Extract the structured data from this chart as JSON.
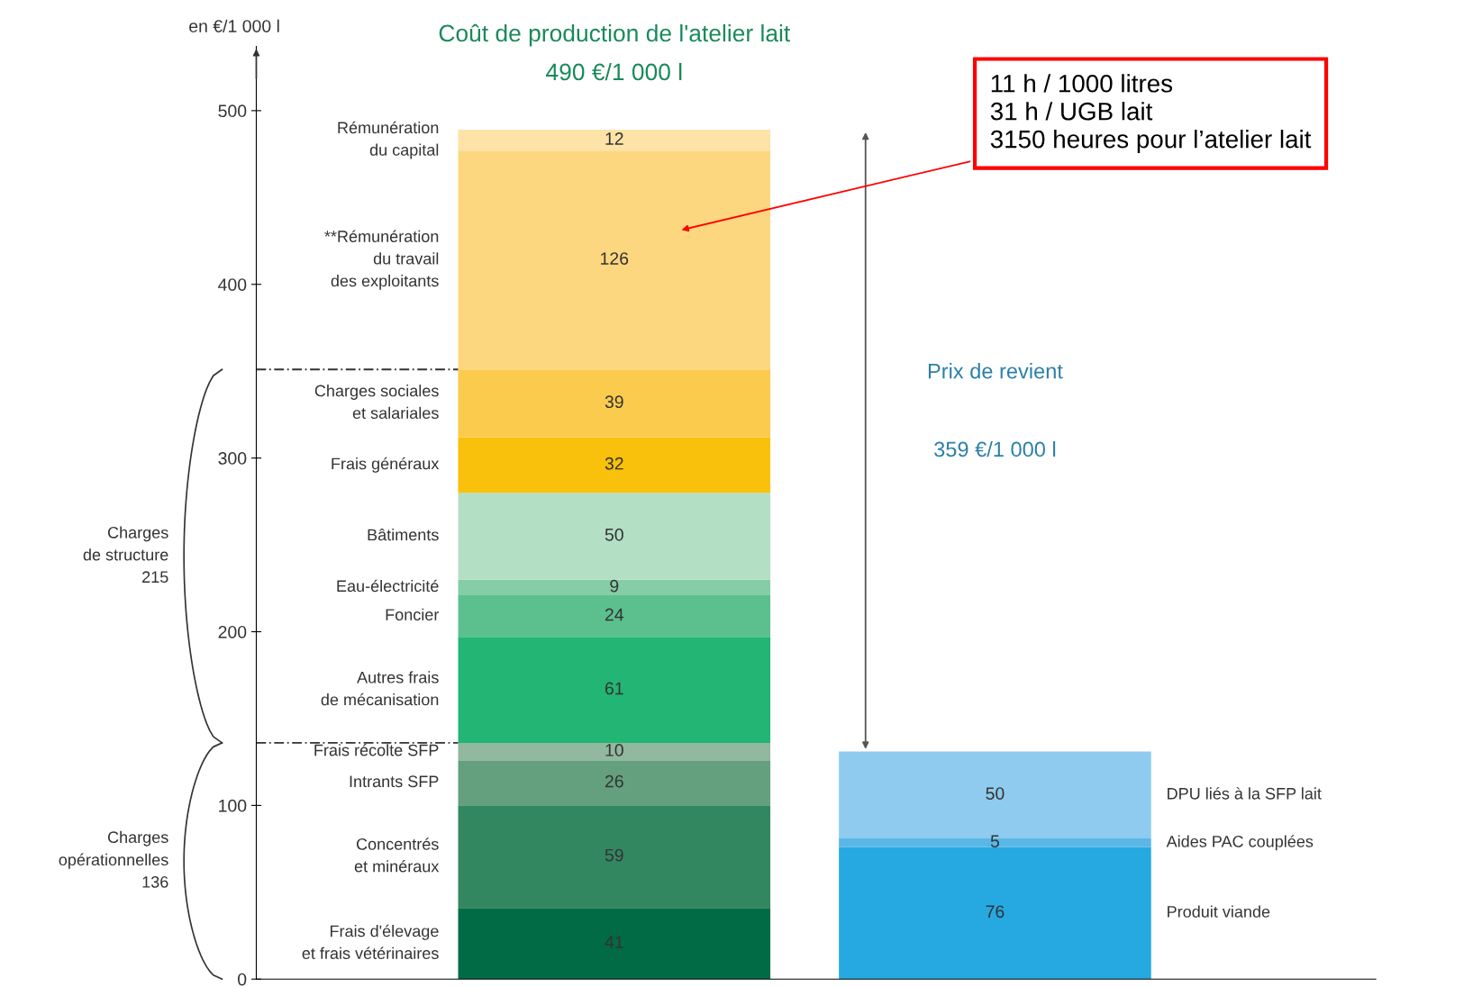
{
  "chart_data": {
    "type": "bar",
    "title": "Coût de production de l'atelier lait",
    "subtitle": "490 €/1 000 l",
    "ylabel": "en €/1 000 l",
    "categories": [
      null,
      null
    ],
    "stacked": true,
    "data_labels": true,
    "ylim": [
      0,
      537
    ],
    "yticks": [
      0,
      100,
      200,
      300,
      400,
      500
    ],
    "series": [
      {
        "name": "Frais d'élevage\net frais vétérinaires",
        "color": "#006b45",
        "values": [
          41,
          null
        ]
      },
      {
        "name": "Concentrés\net minéraux",
        "color": "#338760",
        "values": [
          59,
          null
        ]
      },
      {
        "name": "Intrants SFP",
        "color": "#64a07d",
        "values": [
          26,
          null
        ]
      },
      {
        "name": "Frais récolte SFP",
        "color": "#93b8a0",
        "values": [
          10,
          null
        ]
      },
      {
        "name": "Autres frais\nde mécanisation",
        "color": "#22b574",
        "values": [
          61,
          null
        ]
      },
      {
        "name": "Foncier",
        "color": "#5cc08e",
        "values": [
          24,
          null
        ]
      },
      {
        "name": "Eau-électricité",
        "color": "#85cda6",
        "values": [
          9,
          null
        ]
      },
      {
        "name": "Bâtiments",
        "color": "#b3dfc5",
        "values": [
          50,
          null
        ]
      },
      {
        "name": "Frais généraux",
        "color": "#f9c00c",
        "values": [
          32,
          null
        ]
      },
      {
        "name": "Charges sociales\net salariales",
        "color": "#fbcb4d",
        "values": [
          39,
          null
        ]
      },
      {
        "name": "**Rémunération\ndu travail\ndes exploitants",
        "color": "#fcd77f",
        "values": [
          126,
          null
        ]
      },
      {
        "name": "Rémunération\ndu capital",
        "color": "#fde3a8",
        "values": [
          12,
          null
        ]
      },
      {
        "name": "Produit viande",
        "color": "#25a9e0",
        "values": [
          null,
          76
        ]
      },
      {
        "name": "Aides PAC couplées",
        "color": "#5ab7e6",
        "values": [
          null,
          5
        ]
      },
      {
        "name": "DPU liés à la SFP lait",
        "color": "#8ecbee",
        "values": [
          null,
          50
        ]
      }
    ],
    "ref_lines": [
      {
        "axis": "y",
        "value": 136,
        "line_style": "dashed",
        "color": "#333333"
      },
      {
        "axis": "y",
        "value": 351,
        "line_style": "dashed",
        "color": "#333333"
      }
    ],
    "annotations": [
      "Charges\nde structure\n215",
      "Charges\nopérationnelles\n136",
      "Prix de revient",
      "359 €/1 000 l",
      "11 h / 1000 litres\n31 h / UGB lait\n3150 heures pour l’atelier lait"
    ]
  }
}
